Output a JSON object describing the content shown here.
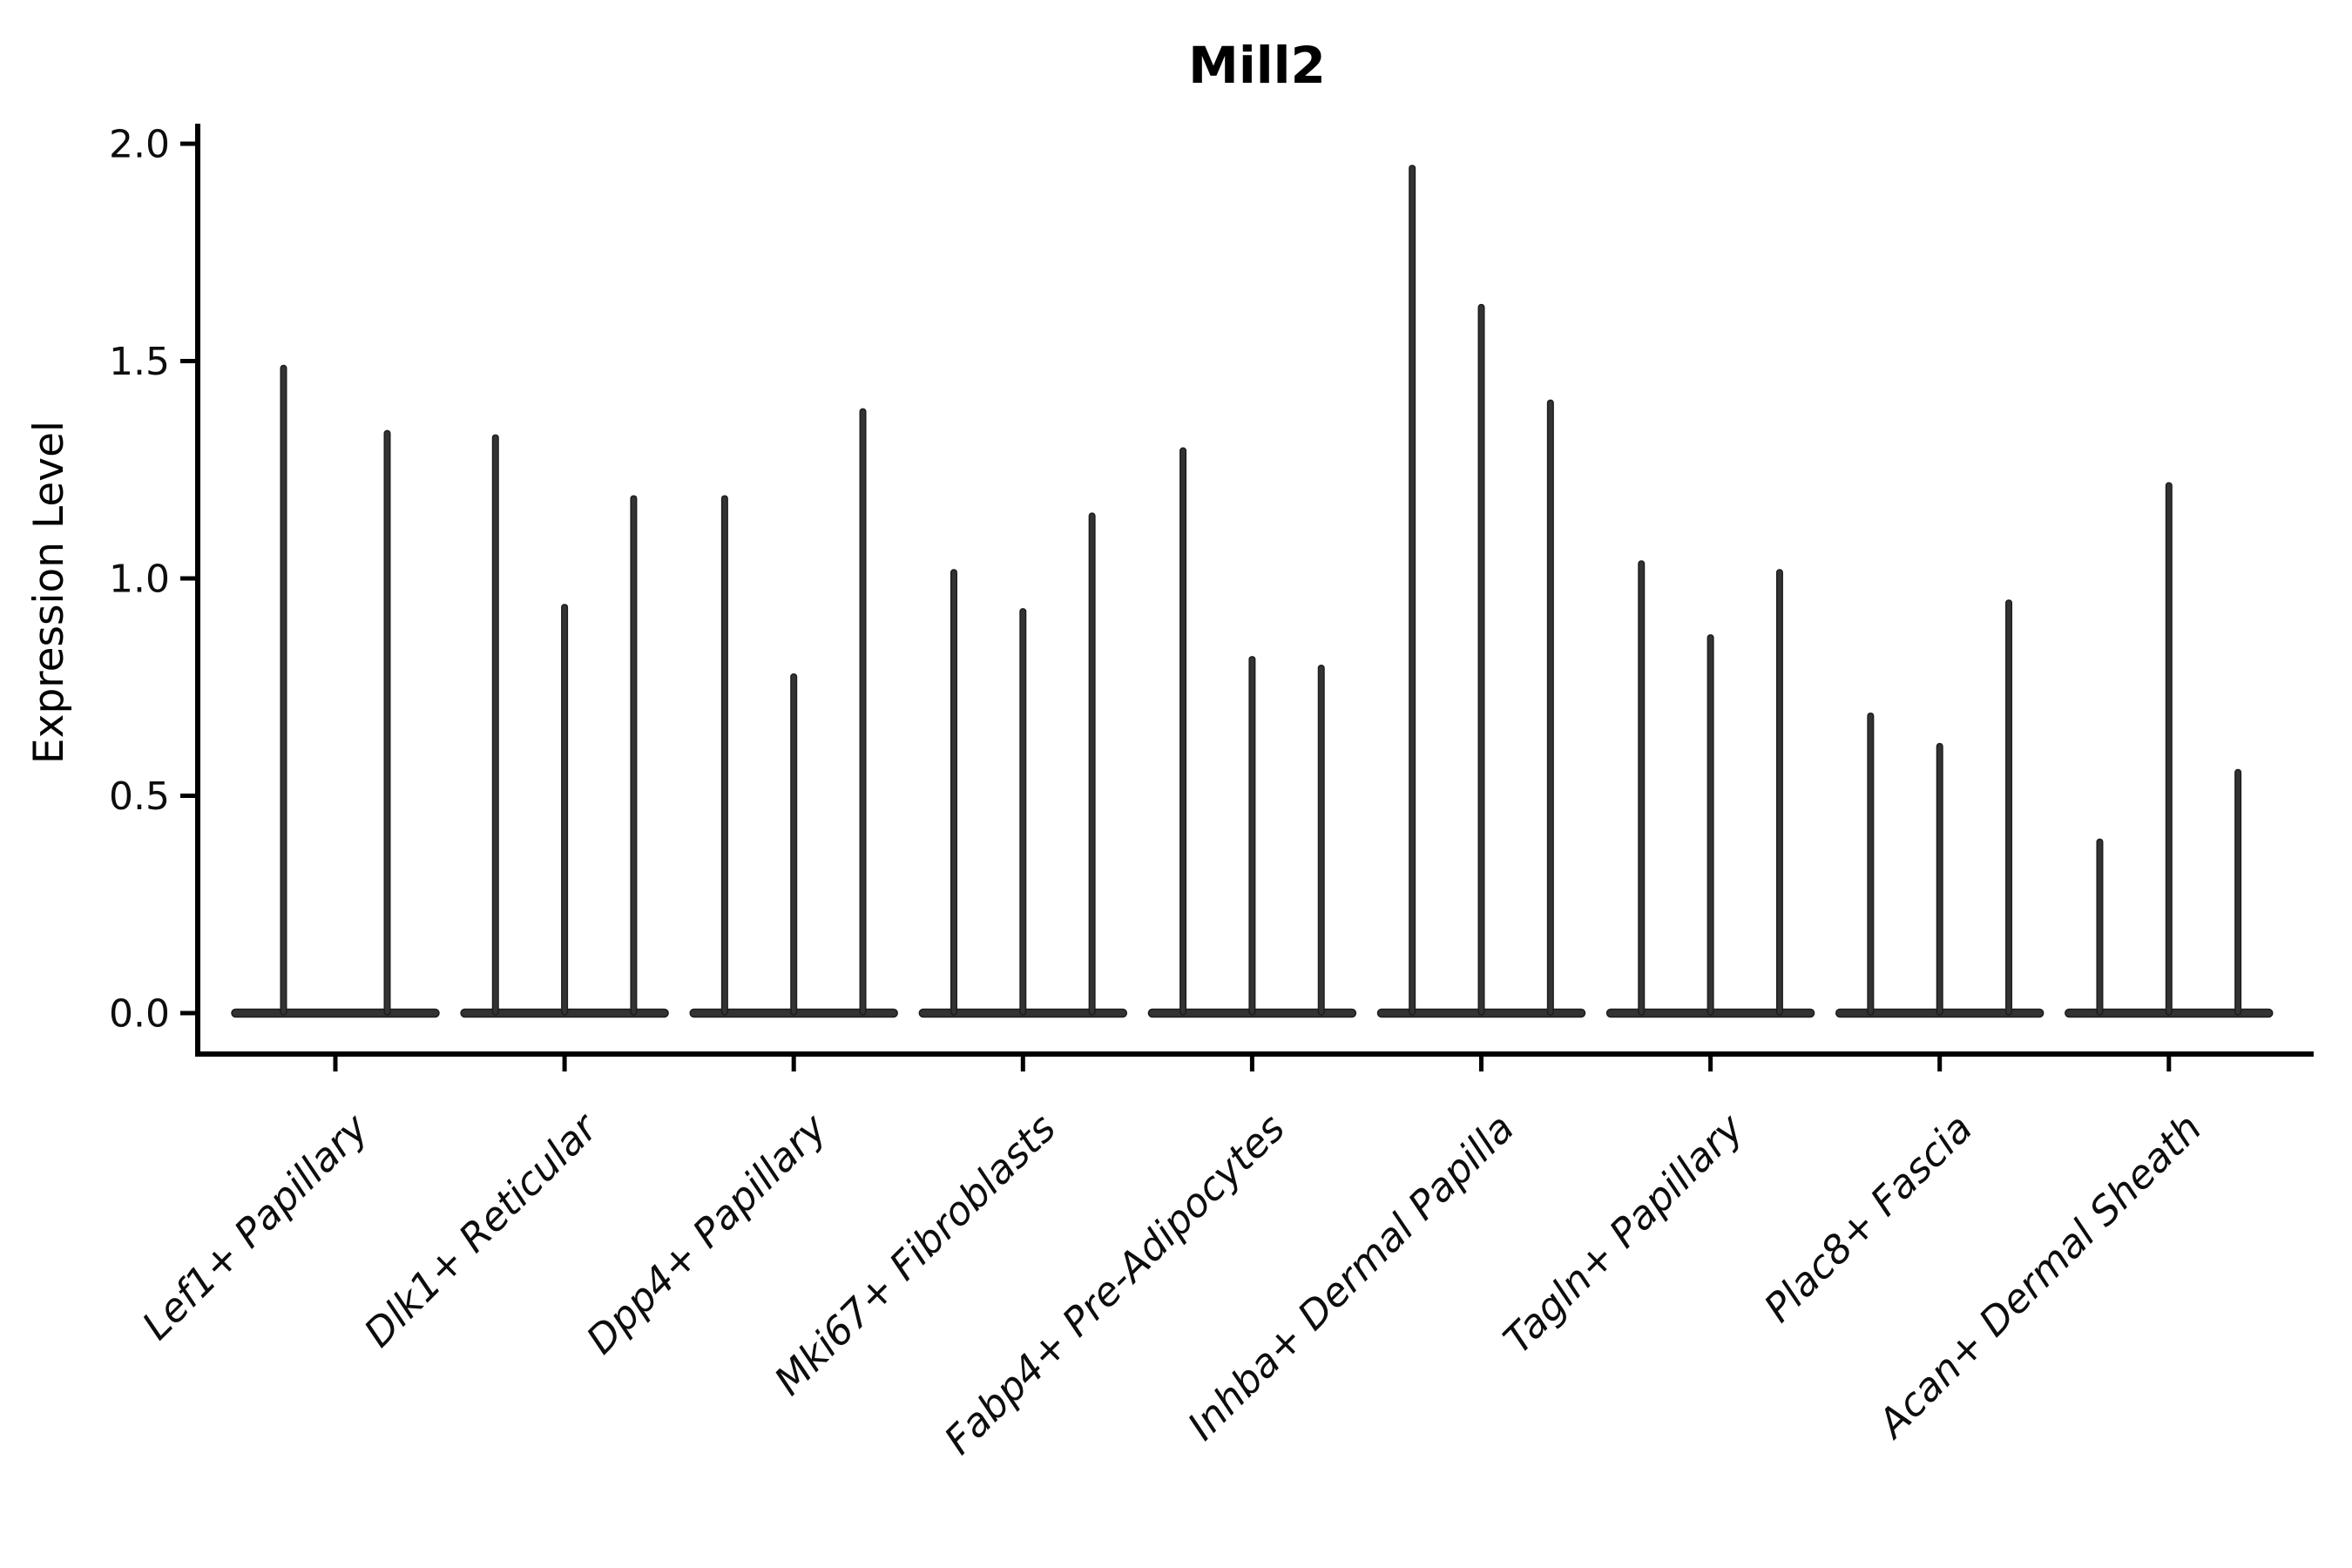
{
  "figure": {
    "background": "#ffffff"
  },
  "chart_data": {
    "type": "violin",
    "title": "Mill2",
    "ylabel": "Expression Level",
    "xlabel": "",
    "ylim": [
      0,
      2.0
    ],
    "ytick_labels": [
      "0.0",
      "0.5",
      "1.0",
      "1.5",
      "2.0"
    ],
    "grid": false,
    "legend": "none",
    "ink_color": "#333333",
    "axis_color": "#000000",
    "groups": [
      {
        "label": "Lef1+ Papillary",
        "violin_peaks": [
          1.49,
          1.34
        ]
      },
      {
        "label": "Dlk1+ Reticular",
        "violin_peaks": [
          1.33,
          0.94,
          1.19
        ]
      },
      {
        "label": "Dpp4+ Papillary",
        "violin_peaks": [
          1.19,
          0.78,
          1.39
        ]
      },
      {
        "label": "Mki67+ Fibroblasts",
        "violin_peaks": [
          1.02,
          0.93,
          1.15
        ]
      },
      {
        "label": "Fabp4+ Pre-Adipocytes",
        "violin_peaks": [
          1.3,
          0.82,
          0.8
        ]
      },
      {
        "label": "Inhba+ Dermal Papilla",
        "violin_peaks": [
          1.95,
          1.63,
          1.41
        ]
      },
      {
        "label": "Tagln+ Papillary",
        "violin_peaks": [
          1.04,
          0.87,
          1.02
        ]
      },
      {
        "label": "Plac8+ Fascia",
        "violin_peaks": [
          0.69,
          0.62,
          0.95
        ]
      },
      {
        "label": "Acan+ Dermal Sheath",
        "violin_peaks": [
          0.4,
          1.22,
          0.56
        ]
      }
    ]
  }
}
